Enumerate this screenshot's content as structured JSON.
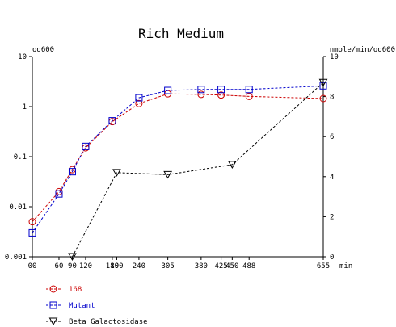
{
  "chart_data": {
    "type": "line",
    "title": "Rich Medium",
    "y_left_label": "od600",
    "y_right_label": "nmole/min/od600",
    "x_unit": "min",
    "x_range": [
      0,
      655
    ],
    "x_ticks": [
      0,
      60,
      90,
      120,
      180,
      190,
      240,
      305,
      380,
      425,
      450,
      488,
      655
    ],
    "x_tick_labels": [
      "00",
      "60",
      "90",
      "120",
      "180",
      "190",
      "240",
      "305",
      "380",
      "425",
      "450",
      "488",
      "655"
    ],
    "y_left_scale": "log",
    "y_left_range": [
      0.001,
      10
    ],
    "y_left_ticks": [
      0.001,
      0.01,
      0.1,
      1,
      10
    ],
    "y_left_tick_labels": [
      "0.001",
      "0.01",
      "0.1",
      "1",
      "10"
    ],
    "y_right_range": [
      0,
      10
    ],
    "y_right_ticks": [
      0,
      2,
      4,
      6,
      8,
      10
    ],
    "y_right_tick_labels": [
      "0",
      "2",
      "4",
      "6",
      "8",
      "10"
    ],
    "grid": false,
    "legend_position": "bottom-left",
    "series": [
      {
        "name": "168",
        "axis": "left",
        "color": "#cc0000",
        "marker": "circle",
        "x": [
          0,
          60,
          90,
          120,
          180,
          240,
          305,
          380,
          425,
          488,
          655
        ],
        "y": [
          0.005,
          0.02,
          0.055,
          0.15,
          0.5,
          1.15,
          1.8,
          1.75,
          1.7,
          1.6,
          1.45
        ]
      },
      {
        "name": "Mutant",
        "axis": "left",
        "color": "#0000cc",
        "marker": "square",
        "x": [
          0,
          60,
          90,
          120,
          180,
          240,
          305,
          380,
          425,
          488,
          655
        ],
        "y": [
          0.003,
          0.018,
          0.05,
          0.16,
          0.52,
          1.5,
          2.1,
          2.2,
          2.2,
          2.2,
          2.6
        ]
      },
      {
        "name": "Beta Galactosidase",
        "axis": "right",
        "color": "#000000",
        "marker": "triangle-down",
        "x": [
          90,
          190,
          305,
          450,
          655
        ],
        "y": [
          0,
          4.2,
          4.1,
          4.6,
          8.7
        ]
      }
    ]
  }
}
